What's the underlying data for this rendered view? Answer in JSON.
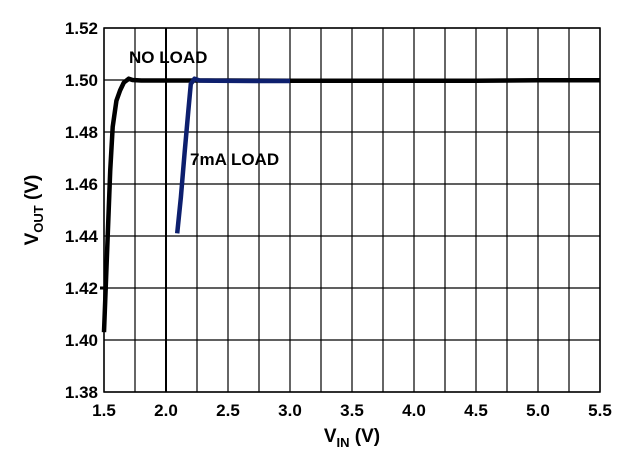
{
  "chart_data": {
    "type": "line",
    "xlabel": {
      "main": "V",
      "sub": "IN",
      "unit": " (V)"
    },
    "ylabel": {
      "main": "V",
      "sub": "OUT",
      "unit": " (V)"
    },
    "xlim": [
      1.5,
      5.5
    ],
    "ylim": [
      1.38,
      1.52
    ],
    "xticks": [
      "1.5",
      "2.0",
      "2.5",
      "3.0",
      "3.5",
      "4.0",
      "4.5",
      "5.0",
      "5.5"
    ],
    "yticks": [
      "1.38",
      "1.40",
      "1.42",
      "1.44",
      "1.46",
      "1.48",
      "1.50",
      "1.52"
    ],
    "grid": true,
    "minor_x_gridlines": true,
    "series": [
      {
        "name": "NO LOAD",
        "color": "#000000",
        "points": [
          [
            1.5,
            1.403
          ],
          [
            1.51,
            1.415
          ],
          [
            1.53,
            1.44
          ],
          [
            1.55,
            1.465
          ],
          [
            1.57,
            1.482
          ],
          [
            1.6,
            1.492
          ],
          [
            1.63,
            1.496
          ],
          [
            1.66,
            1.499
          ],
          [
            1.7,
            1.5005
          ],
          [
            1.73,
            1.5
          ],
          [
            1.8,
            1.4998
          ],
          [
            2.0,
            1.4998
          ],
          [
            2.5,
            1.4998
          ],
          [
            3.0,
            1.4997
          ],
          [
            3.5,
            1.4997
          ],
          [
            4.0,
            1.4997
          ],
          [
            4.5,
            1.4997
          ],
          [
            5.0,
            1.4999
          ],
          [
            5.5,
            1.4999
          ]
        ]
      },
      {
        "name": "7mA LOAD",
        "color": "#0d1f6e",
        "points": [
          [
            2.09,
            1.441
          ],
          [
            2.12,
            1.455
          ],
          [
            2.15,
            1.472
          ],
          [
            2.18,
            1.488
          ],
          [
            2.2,
            1.4985
          ],
          [
            2.23,
            1.5005
          ],
          [
            2.27,
            1.4998
          ],
          [
            2.4,
            1.4997
          ],
          [
            2.8,
            1.4996
          ],
          [
            3.0,
            1.4996
          ]
        ]
      }
    ],
    "annotations": [
      "NO LOAD",
      "7mA LOAD"
    ],
    "tick_mark": {
      "x": 1.5,
      "y": 1.42
    }
  }
}
